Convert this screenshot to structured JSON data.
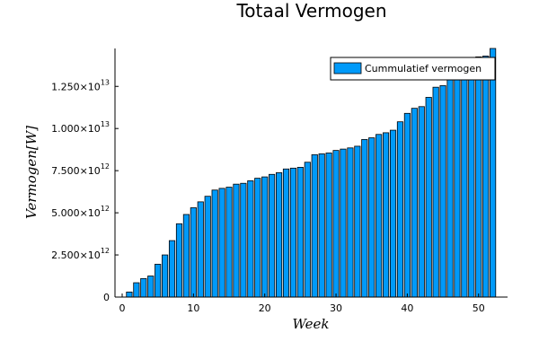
{
  "chart_data": {
    "type": "bar",
    "title": "Totaal Vermogen",
    "xlabel": "Week",
    "ylabel": "Vermogen[W]",
    "legend": {
      "entries": [
        "Cummulatief vermogen"
      ],
      "placement": "top-right"
    },
    "series": [
      {
        "name": "Cummulatief vermogen",
        "color": "#009AF9",
        "x": [
          1,
          2,
          3,
          4,
          5,
          6,
          7,
          8,
          9,
          10,
          11,
          12,
          13,
          14,
          15,
          16,
          17,
          18,
          19,
          20,
          21,
          22,
          23,
          24,
          25,
          26,
          27,
          28,
          29,
          30,
          31,
          32,
          33,
          34,
          35,
          36,
          37,
          38,
          39,
          40,
          41,
          42,
          43,
          44,
          45,
          46,
          47,
          48,
          49,
          50,
          51,
          52
        ],
        "values": [
          300000000000.0,
          850000000000.0,
          1100000000000.0,
          1250000000000.0,
          1950000000000.0,
          2500000000000.0,
          3350000000000.0,
          4350000000000.0,
          4900000000000.0,
          5300000000000.0,
          5650000000000.0,
          5980000000000.0,
          6350000000000.0,
          6450000000000.0,
          6520000000000.0,
          6700000000000.0,
          6750000000000.0,
          6900000000000.0,
          7050000000000.0,
          7130000000000.0,
          7280000000000.0,
          7380000000000.0,
          7600000000000.0,
          7650000000000.0,
          7700000000000.0,
          8000000000000.0,
          8450000000000.0,
          8500000000000.0,
          8550000000000.0,
          8700000000000.0,
          8780000000000.0,
          8850000000000.0,
          8950000000000.0,
          9350000000000.0,
          9450000000000.0,
          9650000000000.0,
          9750000000000.0,
          9900000000000.0,
          10400000000000.0,
          10900000000000.0,
          11200000000000.0,
          11300000000000.0,
          11850000000000.0,
          12450000000000.0,
          12550000000000.0,
          12900000000000.0,
          13100000000000.0,
          13400000000000.0,
          13600000000000.0,
          14250000000000.0,
          14300000000000.0,
          14750000000000.0
        ]
      }
    ],
    "xlim": [
      -1,
      54
    ],
    "ylim": [
      0,
      14750000000000.0
    ],
    "xticks": [
      0,
      10,
      20,
      30,
      40,
      50
    ],
    "yticks": [
      {
        "value": 0,
        "label": "0"
      },
      {
        "value": 2500000000000.0,
        "mantissa": "2.500×10",
        "exp": "12"
      },
      {
        "value": 5000000000000.0,
        "mantissa": "5.000×10",
        "exp": "12"
      },
      {
        "value": 7500000000000.0,
        "mantissa": "7.500×10",
        "exp": "12"
      },
      {
        "value": 10000000000000.0,
        "mantissa": "1.000×10",
        "exp": "13"
      },
      {
        "value": 12500000000000.0,
        "mantissa": "1.250×10",
        "exp": "13"
      }
    ],
    "grid": false
  }
}
